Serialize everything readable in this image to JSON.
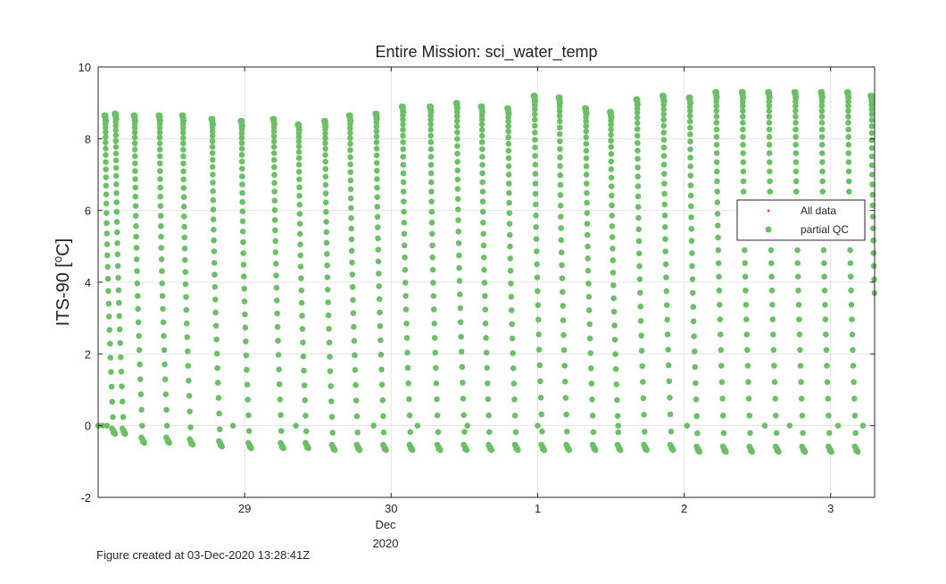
{
  "chart_data": {
    "type": "scatter",
    "title": "Entire Mission: sci_water_temp",
    "ylabel_main": "ITS-90 [",
    "ylabel_sup": "o",
    "ylabel_end": "C]",
    "xlabel": "",
    "ylim": [
      -2,
      10
    ],
    "y_ticks": [
      -2,
      0,
      2,
      4,
      6,
      8,
      10
    ],
    "x_ticks": [
      {
        "value": 29.0,
        "label": "29"
      },
      {
        "value": 30.0,
        "label": "30"
      },
      {
        "value": 31.0,
        "label": "1"
      },
      {
        "value": 32.0,
        "label": "2"
      },
      {
        "value": 33.0,
        "label": "3"
      }
    ],
    "x_range_days_nov2020": [
      28.0,
      33.3
    ],
    "x_sublabel_month": "Dec",
    "x_sublabel_year": "2020",
    "grid": true,
    "legend_position": "right",
    "legend": [
      {
        "name": "All data",
        "color": "#ff0000",
        "marker": "dot"
      },
      {
        "name": "partial QC",
        "color": "#6dbf67",
        "marker": "circle"
      }
    ],
    "series_color": "#6dbf67",
    "profiles_note": "glider yo profiles; each profile spans surface temp to bottom temp",
    "profiles": [
      {
        "x": 28.05,
        "top": 8.65,
        "bottom": -0.2
      },
      {
        "x": 28.12,
        "top": 8.7,
        "bottom": -0.2
      },
      {
        "x": 28.25,
        "top": 8.65,
        "bottom": -0.45
      },
      {
        "x": 28.42,
        "top": 8.65,
        "bottom": -0.45
      },
      {
        "x": 28.58,
        "top": 8.65,
        "bottom": -0.5
      },
      {
        "x": 28.78,
        "top": 8.55,
        "bottom": -0.55
      },
      {
        "x": 28.98,
        "top": 8.5,
        "bottom": -0.6
      },
      {
        "x": 29.2,
        "top": 8.55,
        "bottom": -0.6
      },
      {
        "x": 29.37,
        "top": 8.4,
        "bottom": -0.6
      },
      {
        "x": 29.55,
        "top": 8.5,
        "bottom": -0.65
      },
      {
        "x": 29.72,
        "top": 8.65,
        "bottom": -0.65
      },
      {
        "x": 29.9,
        "top": 8.7,
        "bottom": -0.65
      },
      {
        "x": 30.08,
        "top": 8.9,
        "bottom": -0.65
      },
      {
        "x": 30.27,
        "top": 8.9,
        "bottom": -0.65
      },
      {
        "x": 30.45,
        "top": 9.0,
        "bottom": -0.65
      },
      {
        "x": 30.62,
        "top": 8.9,
        "bottom": -0.65
      },
      {
        "x": 30.8,
        "top": 8.85,
        "bottom": -0.65
      },
      {
        "x": 30.98,
        "top": 9.2,
        "bottom": -0.65
      },
      {
        "x": 31.15,
        "top": 9.15,
        "bottom": -0.65
      },
      {
        "x": 31.33,
        "top": 8.85,
        "bottom": -0.65
      },
      {
        "x": 31.5,
        "top": 8.75,
        "bottom": -0.65
      },
      {
        "x": 31.68,
        "top": 9.1,
        "bottom": -0.65
      },
      {
        "x": 31.86,
        "top": 9.2,
        "bottom": -0.65
      },
      {
        "x": 32.04,
        "top": 9.15,
        "bottom": -0.7
      },
      {
        "x": 32.22,
        "top": 9.3,
        "bottom": -0.7
      },
      {
        "x": 32.4,
        "top": 9.3,
        "bottom": -0.7
      },
      {
        "x": 32.58,
        "top": 9.3,
        "bottom": -0.7
      },
      {
        "x": 32.76,
        "top": 9.3,
        "bottom": -0.7
      },
      {
        "x": 32.94,
        "top": 9.3,
        "bottom": -0.7
      },
      {
        "x": 33.12,
        "top": 9.3,
        "bottom": -0.7
      },
      {
        "x": 33.28,
        "top": 9.2,
        "bottom": -0.75
      }
    ],
    "zero_points_x": [
      28.0,
      28.03,
      28.06,
      28.92,
      29.35,
      29.88,
      30.18,
      30.52,
      31.0,
      31.55,
      32.02,
      32.55,
      32.72,
      33.05,
      33.22
    ]
  },
  "footer": {
    "text": "Figure created at 03-Dec-2020 13:28:41Z"
  }
}
